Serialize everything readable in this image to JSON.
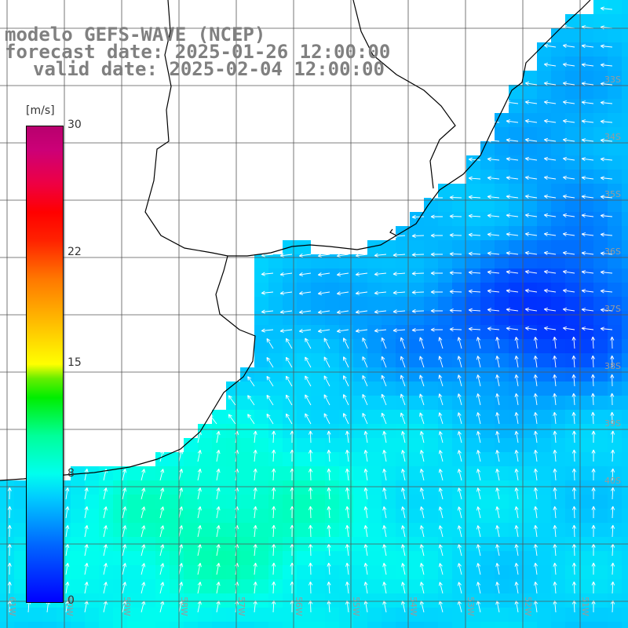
{
  "header": {
    "line1": "modelo GEFS-WAVE (NCEP)",
    "line2": "forecast date: 2025-01-26 12:00:00",
    "line3": "valid date: 2025-02-04 12:00:00"
  },
  "colorbar": {
    "unit": "[m/s]",
    "min": 0,
    "max": 30,
    "ticks": [
      "30",
      "22",
      "15",
      "8",
      "0"
    ],
    "tick_values": [
      30,
      22,
      15,
      8,
      0
    ]
  },
  "grid": {
    "lat_labels": [
      "33S",
      "34S",
      "35S",
      "36S",
      "37S",
      "38S",
      "39S",
      "40S"
    ],
    "lon_labels": [
      "61W",
      "60W",
      "59W",
      "58W",
      "57W",
      "56W",
      "55W",
      "54W",
      "53W",
      "52W",
      "51W"
    ]
  },
  "colors": {
    "grid": "#555555",
    "coast": "#000000",
    "arrows": "#ffffff",
    "header_text": "#808080"
  }
}
